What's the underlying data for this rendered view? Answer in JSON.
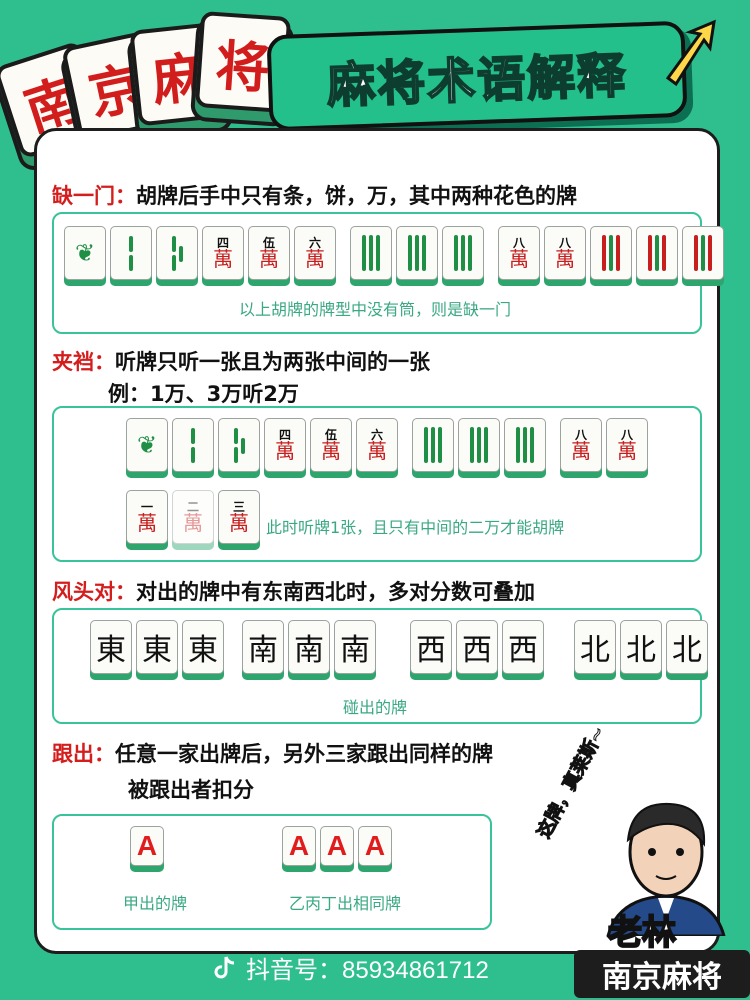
{
  "header": {
    "logo_chars": [
      "南",
      "京",
      "麻",
      "将"
    ],
    "title": "麻将术语解释"
  },
  "sections": {
    "que": {
      "key": "缺一门：",
      "desc": "胡牌后手中只有条，饼，万，其中两种花色的牌",
      "caption": "以上胡牌的牌型中没有筒，则是缺一门"
    },
    "jia": {
      "key": "夹裆：",
      "desc": "听牌只听一张且为两张中间的一张",
      "example": "例：1万、3万听2万",
      "caption": "此时听牌1张，且只有中间的二万才能胡牌"
    },
    "feng": {
      "key": "风头对：",
      "desc": "对出的牌中有东南西北时，多对分数可叠加",
      "caption": "碰出的牌"
    },
    "gen": {
      "key": "跟出：",
      "desc": "任意一家出牌后，另外三家跟出同样的牌",
      "desc2": "被跟出者扣分",
      "caption_left": "甲出的牌",
      "caption_right": "乙丙丁出相同牌"
    }
  },
  "tiles": {
    "wan_chars": {
      "w4": "四",
      "w5": "伍",
      "w6": "六",
      "w8": "八",
      "w1": "一",
      "w2": "二",
      "w3": "三",
      "wan": "萬"
    },
    "winds": [
      "東",
      "南",
      "西",
      "北"
    ],
    "gen_letter": "A"
  },
  "footer": {
    "douyin": "抖音号：85934861712",
    "brand_top": "老林",
    "brand_bottom": "南京麻将",
    "slogan": "这牌，真莱斯~"
  },
  "colors": {
    "green": "#2fbf8f",
    "red": "#d41e1e",
    "caption": "#3aa983"
  }
}
